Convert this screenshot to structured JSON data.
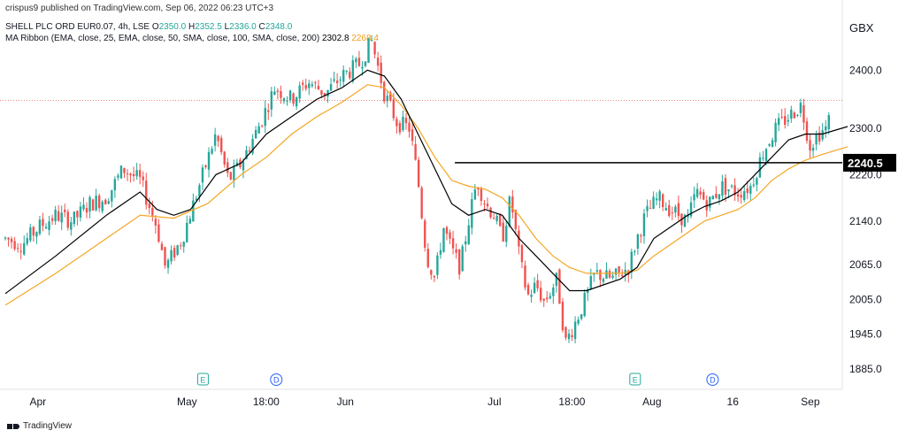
{
  "header": {
    "caption": "crispus9 published on TradingView.com, Sep 06, 2022 06:23 UTC+3"
  },
  "legend": {
    "line1_prefix": "SHELL PLC ORD EUR0.07, 4h, LSE",
    "ohlc": [
      {
        "k": "O",
        "v": "2350.0"
      },
      {
        "k": "H",
        "v": "2352.5"
      },
      {
        "k": "L",
        "v": "2336.0"
      },
      {
        "k": "C",
        "v": "2348.0"
      }
    ],
    "line2_prefix": "MA Ribbon (EMA, close, 25, EMA, close, 50, SMA, close, 100, SMA, close, 200)",
    "ma1": "2302.8",
    "ma2": "2268.4"
  },
  "currency": "GBX",
  "footer": {
    "brand": "TradingView"
  },
  "colors": {
    "up": "#26a69a",
    "down": "#ef5350",
    "ma_fast": "#000000",
    "ma_slow": "#f5a623",
    "hline": "#000000",
    "last_price_line": "#ef5350"
  },
  "chart_data": {
    "type": "line",
    "series_kind": "candlestick",
    "ylim": [
      1850,
      2460
    ],
    "y_ticks": [
      {
        "value": 2400,
        "label": "2400.0"
      },
      {
        "value": 2300,
        "label": "2300.0"
      },
      {
        "value": 2220,
        "label": "2220.0"
      },
      {
        "value": 2140,
        "label": "2140.0"
      },
      {
        "value": 2065,
        "label": "2065.0"
      },
      {
        "value": 2005,
        "label": "2005.0"
      },
      {
        "value": 1945,
        "label": "1945.0"
      },
      {
        "value": 1885,
        "label": "1885.0"
      }
    ],
    "x_ticks": [
      {
        "pos": 0.045,
        "label": "Apr"
      },
      {
        "pos": 0.222,
        "label": "May"
      },
      {
        "pos": 0.316,
        "label": "18:00"
      },
      {
        "pos": 0.41,
        "label": "Jun"
      },
      {
        "pos": 0.587,
        "label": "Jul"
      },
      {
        "pos": 0.679,
        "label": "18:00"
      },
      {
        "pos": 0.774,
        "label": "Aug"
      },
      {
        "pos": 0.87,
        "label": "16"
      },
      {
        "pos": 0.962,
        "label": "Sep"
      }
    ],
    "event_markers": [
      {
        "pos": 0.241,
        "label": "E",
        "kind": "earnings"
      },
      {
        "pos": 0.328,
        "label": "D",
        "kind": "dividend"
      },
      {
        "pos": 0.754,
        "label": "E",
        "kind": "earnings"
      },
      {
        "pos": 0.846,
        "label": "D",
        "kind": "dividend"
      }
    ],
    "horizontal_line": {
      "value": 2240.5,
      "label": "2240.5",
      "x_start_pos": 0.54
    },
    "last_price": 2348.0,
    "close_path": [
      [
        0.0,
        2110
      ],
      [
        0.02,
        2100
      ],
      [
        0.04,
        2130
      ],
      [
        0.06,
        2150
      ],
      [
        0.08,
        2140
      ],
      [
        0.1,
        2170
      ],
      [
        0.12,
        2180
      ],
      [
        0.14,
        2230
      ],
      [
        0.16,
        2210
      ],
      [
        0.18,
        2130
      ],
      [
        0.19,
        2060
      ],
      [
        0.21,
        2110
      ],
      [
        0.23,
        2200
      ],
      [
        0.25,
        2290
      ],
      [
        0.265,
        2210
      ],
      [
        0.28,
        2240
      ],
      [
        0.3,
        2300
      ],
      [
        0.32,
        2370
      ],
      [
        0.34,
        2350
      ],
      [
        0.36,
        2380
      ],
      [
        0.38,
        2360
      ],
      [
        0.4,
        2390
      ],
      [
        0.42,
        2410
      ],
      [
        0.435,
        2450
      ],
      [
        0.45,
        2360
      ],
      [
        0.465,
        2310
      ],
      [
        0.48,
        2300
      ],
      [
        0.49,
        2210
      ],
      [
        0.5,
        2080
      ],
      [
        0.51,
        2040
      ],
      [
        0.52,
        2130
      ],
      [
        0.53,
        2090
      ],
      [
        0.54,
        2060
      ],
      [
        0.55,
        2140
      ],
      [
        0.56,
        2210
      ],
      [
        0.57,
        2170
      ],
      [
        0.58,
        2150
      ],
      [
        0.59,
        2110
      ],
      [
        0.6,
        2180
      ],
      [
        0.61,
        2080
      ],
      [
        0.62,
        2010
      ],
      [
        0.63,
        2030
      ],
      [
        0.64,
        2000
      ],
      [
        0.655,
        2040
      ],
      [
        0.665,
        1930
      ],
      [
        0.675,
        1960
      ],
      [
        0.69,
        2010
      ],
      [
        0.7,
        2050
      ],
      [
        0.72,
        2040
      ],
      [
        0.74,
        2060
      ],
      [
        0.75,
        2110
      ],
      [
        0.76,
        2150
      ],
      [
        0.775,
        2180
      ],
      [
        0.79,
        2160
      ],
      [
        0.81,
        2140
      ],
      [
        0.82,
        2190
      ],
      [
        0.835,
        2170
      ],
      [
        0.85,
        2200
      ],
      [
        0.87,
        2190
      ],
      [
        0.885,
        2200
      ],
      [
        0.9,
        2260
      ],
      [
        0.915,
        2300
      ],
      [
        0.93,
        2320
      ],
      [
        0.945,
        2340
      ],
      [
        0.955,
        2270
      ],
      [
        0.965,
        2290
      ],
      [
        0.975,
        2300
      ],
      [
        0.985,
        2350
      ],
      [
        1.0,
        2348
      ]
    ],
    "ma_fast_path": [
      [
        0.0,
        2015
      ],
      [
        0.06,
        2080
      ],
      [
        0.12,
        2150
      ],
      [
        0.16,
        2190
      ],
      [
        0.18,
        2160
      ],
      [
        0.2,
        2150
      ],
      [
        0.22,
        2160
      ],
      [
        0.25,
        2220
      ],
      [
        0.28,
        2240
      ],
      [
        0.31,
        2290
      ],
      [
        0.34,
        2320
      ],
      [
        0.37,
        2350
      ],
      [
        0.4,
        2370
      ],
      [
        0.43,
        2400
      ],
      [
        0.45,
        2390
      ],
      [
        0.47,
        2350
      ],
      [
        0.49,
        2290
      ],
      [
        0.51,
        2230
      ],
      [
        0.53,
        2170
      ],
      [
        0.55,
        2150
      ],
      [
        0.57,
        2160
      ],
      [
        0.59,
        2150
      ],
      [
        0.61,
        2110
      ],
      [
        0.63,
        2080
      ],
      [
        0.65,
        2050
      ],
      [
        0.67,
        2020
      ],
      [
        0.69,
        2020
      ],
      [
        0.71,
        2030
      ],
      [
        0.73,
        2040
      ],
      [
        0.75,
        2060
      ],
      [
        0.77,
        2110
      ],
      [
        0.79,
        2130
      ],
      [
        0.81,
        2150
      ],
      [
        0.83,
        2165
      ],
      [
        0.85,
        2175
      ],
      [
        0.87,
        2190
      ],
      [
        0.89,
        2220
      ],
      [
        0.91,
        2250
      ],
      [
        0.93,
        2280
      ],
      [
        0.95,
        2290
      ],
      [
        0.97,
        2290
      ],
      [
        1.0,
        2303
      ]
    ],
    "ma_slow_path": [
      [
        0.0,
        1995
      ],
      [
        0.06,
        2050
      ],
      [
        0.12,
        2110
      ],
      [
        0.16,
        2150
      ],
      [
        0.2,
        2145
      ],
      [
        0.24,
        2170
      ],
      [
        0.28,
        2220
      ],
      [
        0.31,
        2250
      ],
      [
        0.34,
        2290
      ],
      [
        0.37,
        2320
      ],
      [
        0.4,
        2345
      ],
      [
        0.43,
        2375
      ],
      [
        0.45,
        2370
      ],
      [
        0.47,
        2340
      ],
      [
        0.49,
        2300
      ],
      [
        0.51,
        2250
      ],
      [
        0.53,
        2210
      ],
      [
        0.55,
        2200
      ],
      [
        0.57,
        2195
      ],
      [
        0.59,
        2180
      ],
      [
        0.61,
        2150
      ],
      [
        0.63,
        2110
      ],
      [
        0.65,
        2080
      ],
      [
        0.67,
        2060
      ],
      [
        0.69,
        2050
      ],
      [
        0.71,
        2050
      ],
      [
        0.73,
        2050
      ],
      [
        0.75,
        2055
      ],
      [
        0.77,
        2080
      ],
      [
        0.79,
        2100
      ],
      [
        0.81,
        2120
      ],
      [
        0.83,
        2140
      ],
      [
        0.85,
        2150
      ],
      [
        0.87,
        2160
      ],
      [
        0.89,
        2180
      ],
      [
        0.91,
        2210
      ],
      [
        0.93,
        2230
      ],
      [
        0.95,
        2245
      ],
      [
        0.97,
        2255
      ],
      [
        1.0,
        2268
      ]
    ]
  }
}
